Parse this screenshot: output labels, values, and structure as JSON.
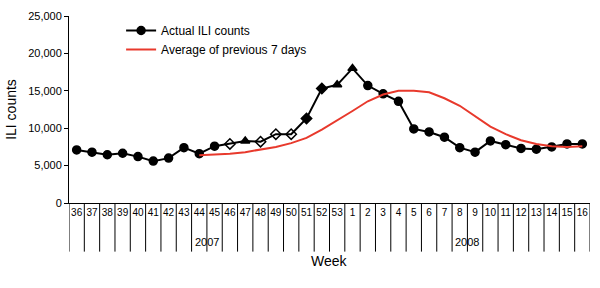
{
  "chart_data": {
    "type": "line",
    "x_label": "Week",
    "y_label": "ILI counts",
    "categories": [
      "36",
      "37",
      "38",
      "39",
      "40",
      "41",
      "42",
      "43",
      "44",
      "45",
      "46",
      "47",
      "48",
      "49",
      "50",
      "51",
      "52",
      "53",
      "1",
      "2",
      "3",
      "4",
      "5",
      "6",
      "7",
      "8",
      "9",
      "10",
      "11",
      "12",
      "13",
      "14",
      "15",
      "16"
    ],
    "x_groups": [
      {
        "label": "2007",
        "from": "36",
        "to": "53"
      },
      {
        "label": "2008",
        "from": "1",
        "to": "16"
      }
    ],
    "series": [
      {
        "name": "Actual ILI counts",
        "color": "#000000",
        "marker": [
          "circle",
          "circle",
          "circle",
          "circle",
          "circle",
          "circle",
          "circle",
          "circle",
          "circle",
          "circle",
          "diamond-open",
          "triangle-up",
          "diamond-open",
          "diamond-open",
          "diamond-open",
          "diamond",
          "diamond",
          "triangle-up",
          "triangle-up",
          "circle",
          "circle",
          "circle",
          "circle",
          "circle",
          "circle",
          "circle",
          "circle",
          "circle",
          "circle",
          "circle",
          "circle",
          "circle",
          "circle",
          "circle"
        ],
        "values": [
          7100,
          6800,
          6450,
          6650,
          6200,
          5600,
          6000,
          7400,
          6600,
          7600,
          7900,
          8300,
          8200,
          9200,
          9200,
          11300,
          15300,
          15800,
          18000,
          15700,
          14600,
          13600,
          9900,
          9500,
          8800,
          7400,
          6800,
          8300,
          7800,
          7300,
          7200,
          7500,
          7900,
          7900
        ]
      },
      {
        "name": "Average of previous 7 days",
        "color": "#e8392c",
        "values": [
          null,
          null,
          null,
          null,
          null,
          null,
          null,
          null,
          6400,
          6450,
          6600,
          6800,
          7100,
          7500,
          8000,
          8700,
          9800,
          11000,
          12300,
          13600,
          14500,
          15000,
          15000,
          14800,
          14000,
          13000,
          11600,
          10200,
          9200,
          8400,
          7900,
          7600,
          7500,
          7600
        ]
      }
    ],
    "ylim": [
      0,
      25000
    ],
    "yticks": [
      0,
      {
        "value": 5000,
        "label": "5,000"
      },
      {
        "value": 10000,
        "label": "10,000"
      },
      {
        "value": 15000,
        "label": "15,000"
      },
      {
        "value": 20000,
        "label": "20,000"
      },
      {
        "value": 25000,
        "label": "25,000"
      }
    ],
    "grid": false,
    "legend": "top left"
  }
}
